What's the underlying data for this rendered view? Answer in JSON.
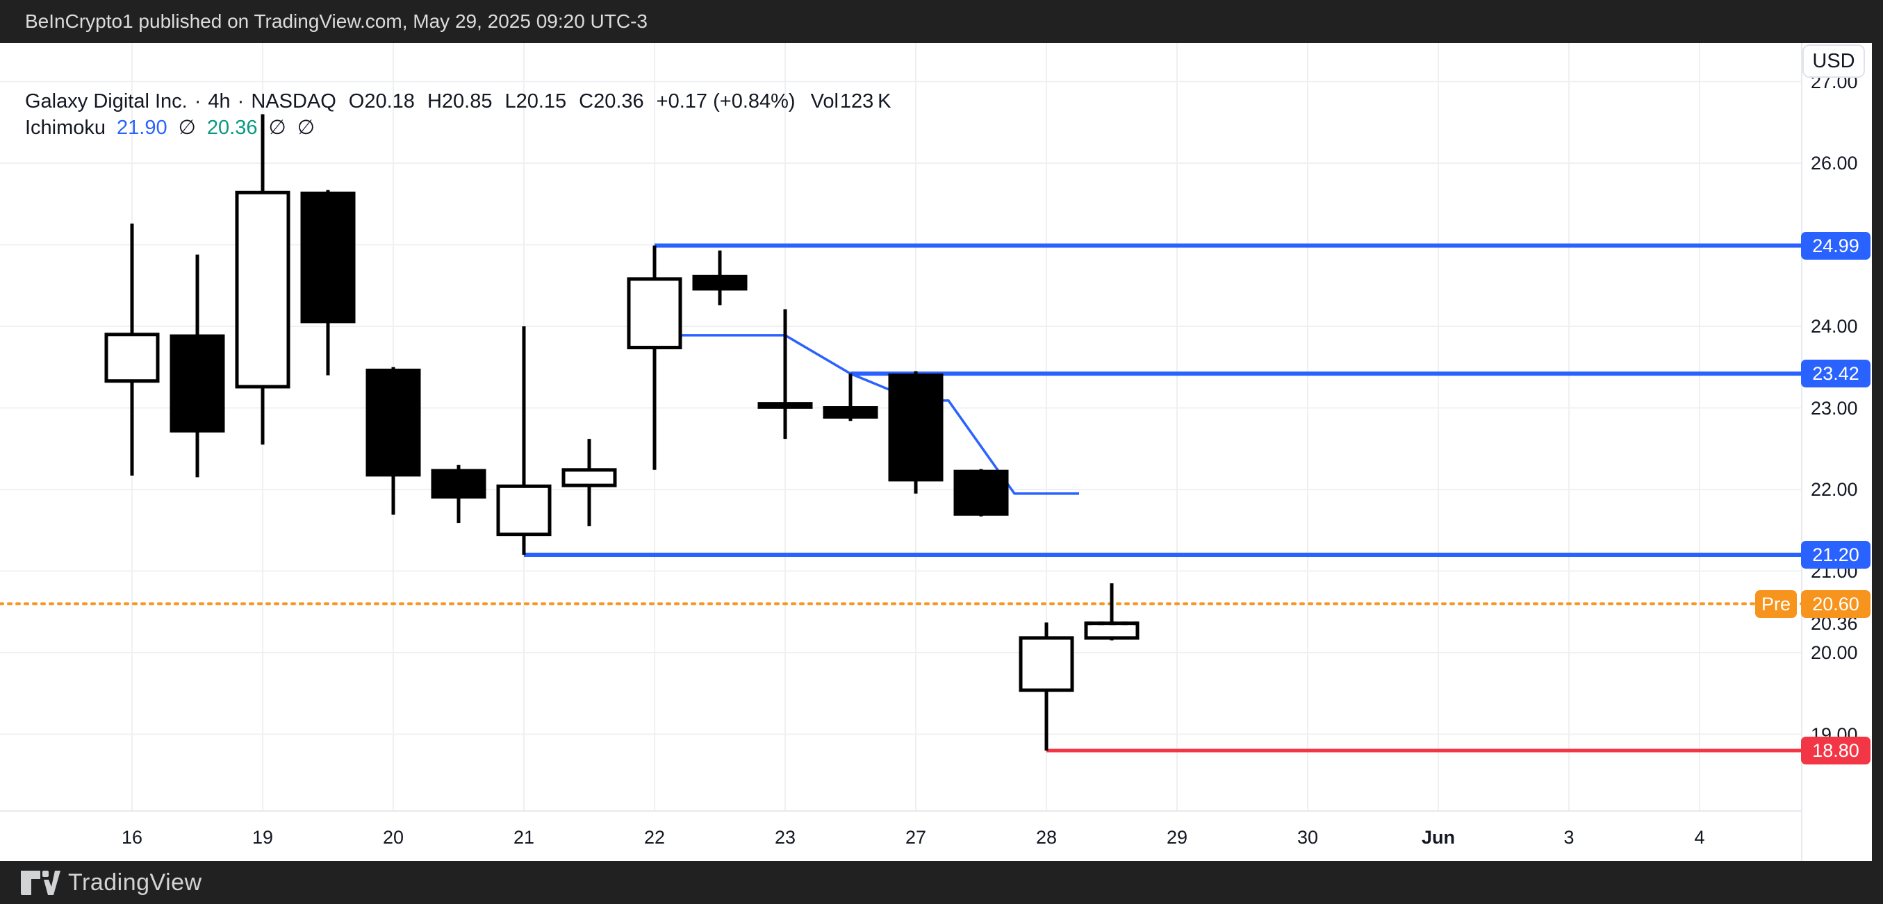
{
  "top_bar": {
    "attribution": "BeInCrypto1 published on TradingView.com, May 29, 2025 09:20 UTC-3"
  },
  "header": {
    "title": "Galaxy Digital Inc.",
    "separator": "·",
    "interval": "4h",
    "exchange": "NASDAQ",
    "ohlc": [
      {
        "label": "O",
        "value": "20.18"
      },
      {
        "label": "H",
        "value": "20.85"
      },
      {
        "label": "L",
        "value": "20.15"
      },
      {
        "label": "C",
        "value": "20.36"
      }
    ],
    "change": "+0.17 (+0.84%)",
    "volume_label": "Vol",
    "volume_value": "123 K",
    "indicator": {
      "name": "Ichimoku",
      "values": [
        {
          "text": "21.90",
          "color": "#2962ff"
        },
        {
          "text": "∅",
          "color": "#131722"
        },
        {
          "text": "20.36",
          "color": "#089981"
        },
        {
          "text": "∅",
          "color": "#131722"
        },
        {
          "text": "∅",
          "color": "#131722"
        }
      ]
    }
  },
  "price_axis": {
    "currency": "USD",
    "labels": [
      {
        "text": "27.00",
        "price": 27.0
      },
      {
        "text": "26.00",
        "price": 26.0
      },
      {
        "text": "24.00",
        "price": 24.0
      },
      {
        "text": "23.00",
        "price": 23.0
      },
      {
        "text": "22.00",
        "price": 22.0
      },
      {
        "text": "21.00",
        "price": 21.0
      },
      {
        "text": "20.36",
        "price": 20.36
      },
      {
        "text": "20.00",
        "price": 20.0
      },
      {
        "text": "19.00",
        "price": 19.0
      }
    ],
    "badges": [
      {
        "text": "24.99",
        "price": 24.99,
        "color": "#2962ff"
      },
      {
        "text": "23.42",
        "price": 23.42,
        "color": "#2962ff"
      },
      {
        "text": "21.20",
        "price": 21.2,
        "color": "#2962ff"
      },
      {
        "text": "20.60",
        "price": 20.6,
        "color": "#f7941e",
        "prefix": "Pre"
      },
      {
        "text": "18.80",
        "price": 18.8,
        "color": "#f23645"
      }
    ]
  },
  "time_axis": {
    "labels": [
      {
        "text": "16"
      },
      {
        "text": "19"
      },
      {
        "text": "20"
      },
      {
        "text": "21"
      },
      {
        "text": "22"
      },
      {
        "text": "23"
      },
      {
        "text": "27"
      },
      {
        "text": "28"
      },
      {
        "text": "29"
      },
      {
        "text": "30"
      },
      {
        "text": "Jun",
        "bold": true
      },
      {
        "text": "3"
      },
      {
        "text": "4"
      }
    ]
  },
  "chart_data": {
    "type": "candlestick",
    "title": "Galaxy Digital Inc. 4h NASDAQ with Ichimoku levels",
    "interval": "4h",
    "grid": true,
    "ylim": [
      18.5,
      27.2
    ],
    "gridline_prices": [
      27,
      26,
      25,
      24,
      23,
      22,
      21,
      20,
      19
    ],
    "candles": [
      {
        "o": 23.33,
        "h": 25.26,
        "l": 22.17,
        "c": 23.9
      },
      {
        "o": 23.88,
        "h": 24.88,
        "l": 22.15,
        "c": 22.72
      },
      {
        "o": 23.26,
        "h": 26.6,
        "l": 22.55,
        "c": 25.64
      },
      {
        "o": 25.63,
        "h": 25.67,
        "l": 23.4,
        "c": 24.06
      },
      {
        "o": 23.46,
        "h": 23.5,
        "l": 21.69,
        "c": 22.18
      },
      {
        "o": 22.23,
        "h": 22.3,
        "l": 21.59,
        "c": 21.91
      },
      {
        "o": 21.45,
        "h": 24.0,
        "l": 21.2,
        "c": 22.04
      },
      {
        "o": 22.05,
        "h": 22.62,
        "l": 21.55,
        "c": 22.24
      },
      {
        "o": 23.74,
        "h": 24.99,
        "l": 22.24,
        "c": 24.58
      },
      {
        "o": 24.61,
        "h": 24.93,
        "l": 24.26,
        "c": 24.46
      },
      {
        "o": 23.05,
        "h": 24.21,
        "l": 22.62,
        "c": 23.01
      },
      {
        "o": 23.0,
        "h": 23.42,
        "l": 22.84,
        "c": 22.89
      },
      {
        "o": 23.4,
        "h": 23.45,
        "l": 21.95,
        "c": 22.12
      },
      {
        "o": 22.22,
        "h": 22.25,
        "l": 21.67,
        "c": 21.7
      },
      {
        "o": 19.54,
        "h": 20.37,
        "l": 18.8,
        "c": 20.18
      },
      {
        "o": 20.18,
        "h": 20.85,
        "l": 20.15,
        "c": 20.36,
        "forming": true
      }
    ],
    "levels": [
      {
        "price": 24.99,
        "color": "#2962ff",
        "start_candle": 8,
        "stroke": 6
      },
      {
        "price": 23.42,
        "color": "#2962ff",
        "start_candle": 11,
        "stroke": 6
      },
      {
        "price": 21.2,
        "color": "#2962ff",
        "start_candle": 6,
        "stroke": 6
      },
      {
        "price": 18.8,
        "color": "#f23645",
        "start_candle": 14,
        "stroke": 5
      }
    ],
    "premarket_line": {
      "price": 20.6,
      "color": "#f7941e",
      "style": "dotted"
    },
    "baseline": {
      "color": "#2962ff",
      "points_x_price": [
        [
          960,
          23.89
        ],
        [
          1130,
          23.89
        ],
        [
          1224,
          23.42
        ],
        [
          1318,
          23.09
        ],
        [
          1365,
          23.09
        ],
        [
          1460,
          21.95
        ],
        [
          1553,
          21.95
        ]
      ]
    }
  },
  "footer": {
    "brand": "TradingView"
  },
  "colors": {
    "background_dark": "#212121",
    "panel": "#ffffff",
    "text_dark": "#131722",
    "text_light": "#dcdcdd",
    "grid": "#eff0f2",
    "axis_border": "#e7e9ec",
    "blue": "#2962ff",
    "red": "#f23645",
    "orange": "#f7941e",
    "green": "#089981",
    "candle": "#000000"
  }
}
